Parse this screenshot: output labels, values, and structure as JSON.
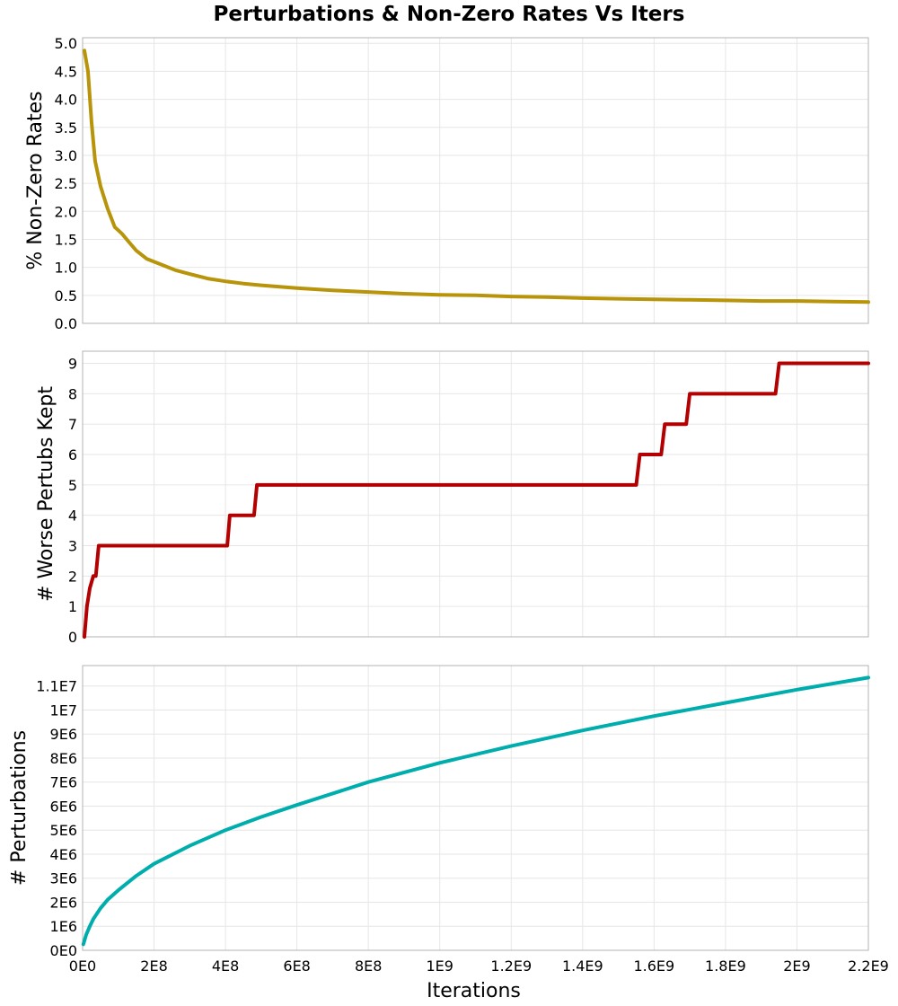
{
  "chart_data": [
    {
      "type": "line",
      "title": "Perturbations & Non-Zero Rates Vs Iters",
      "ylabel": "% Non-Zero Rates",
      "xlim": [
        0,
        2200000000.0
      ],
      "ylim": [
        0,
        5.1
      ],
      "grid": true,
      "yticks": [
        0,
        0.5,
        1.0,
        1.5,
        2.0,
        2.5,
        3.0,
        3.5,
        4.0,
        4.5,
        5.0
      ],
      "ytick_labels": [
        "0.0",
        "0.5",
        "1.0",
        "1.5",
        "2.0",
        "2.5",
        "3.0",
        "3.5",
        "4.0",
        "4.5",
        "5.0"
      ],
      "color": "#b8940a",
      "series": [
        {
          "x": [
            5000000.0,
            15000000.0,
            25000000.0,
            35000000.0,
            50000000.0,
            70000000.0,
            90000000.0,
            110000000.0,
            130000000.0,
            150000000.0,
            180000000.0,
            220000000.0,
            260000000.0,
            300000000.0,
            350000000.0,
            400000000.0,
            450000000.0,
            500000000.0,
            600000000.0,
            700000000.0,
            800000000.0,
            900000000.0,
            1000000000.0,
            1100000000.0,
            1200000000.0,
            1300000000.0,
            1400000000.0,
            1500000000.0,
            1600000000.0,
            1700000000.0,
            1800000000.0,
            1900000000.0,
            2000000000.0,
            2100000000.0,
            2200000000.0
          ],
          "y": [
            4.87,
            4.5,
            3.6,
            2.9,
            2.45,
            2.05,
            1.72,
            1.6,
            1.45,
            1.3,
            1.15,
            1.05,
            0.95,
            0.88,
            0.8,
            0.75,
            0.71,
            0.68,
            0.63,
            0.59,
            0.56,
            0.53,
            0.51,
            0.5,
            0.48,
            0.47,
            0.45,
            0.44,
            0.43,
            0.42,
            0.41,
            0.4,
            0.4,
            0.39,
            0.38
          ]
        }
      ]
    },
    {
      "type": "line",
      "ylabel": "# Worse Pertubs Kept",
      "xlim": [
        0,
        2200000000.0
      ],
      "ylim": [
        0,
        9.4
      ],
      "grid": true,
      "yticks": [
        0,
        1,
        2,
        3,
        4,
        5,
        6,
        7,
        8,
        9
      ],
      "ytick_labels": [
        "0",
        "1",
        "2",
        "3",
        "4",
        "5",
        "6",
        "7",
        "8",
        "9"
      ],
      "color": "#b30000",
      "series": [
        {
          "x": [
            5000000.0,
            12000000.0,
            20000000.0,
            30000000.0,
            37000000.0,
            45000000.0,
            50000000.0,
            405000000.0,
            412000000.0,
            480000000.0,
            488000000.0,
            1550000000.0,
            1560000000.0,
            1620000000.0,
            1630000000.0,
            1690000000.0,
            1700000000.0,
            1940000000.0,
            1950000000.0,
            2200000000.0
          ],
          "y": [
            0,
            1,
            1.6,
            2,
            2,
            3,
            3,
            3,
            4,
            4,
            5,
            5,
            6,
            6,
            7,
            7,
            8,
            8,
            9,
            9
          ]
        }
      ]
    },
    {
      "type": "line",
      "ylabel": "# Perturbations",
      "xlabel": "Iterations",
      "xlim": [
        0,
        2200000000.0
      ],
      "ylim": [
        0,
        11850000.0
      ],
      "grid": true,
      "yticks": [
        0,
        1000000.0,
        2000000.0,
        3000000.0,
        4000000.0,
        5000000.0,
        6000000.0,
        7000000.0,
        8000000.0,
        9000000.0,
        10000000.0,
        11000000.0
      ],
      "ytick_labels": [
        "0E0",
        "1E6",
        "2E6",
        "3E6",
        "4E6",
        "5E6",
        "6E6",
        "7E6",
        "8E6",
        "9E6",
        "1E7",
        "1.1E7"
      ],
      "xticks": [
        0,
        200000000.0,
        400000000.0,
        600000000.0,
        800000000.0,
        1000000000.0,
        1200000000.0,
        1400000000.0,
        1600000000.0,
        1800000000.0,
        2000000000.0,
        2200000000.0
      ],
      "xtick_labels": [
        "0E0",
        "2E8",
        "4E8",
        "6E8",
        "8E8",
        "1E9",
        "1.2E9",
        "1.4E9",
        "1.6E9",
        "1.8E9",
        "2E9",
        "2.2E9"
      ],
      "color": "#00adad",
      "series": [
        {
          "x": [
            2000000.0,
            5000000.0,
            10000000.0,
            20000000.0,
            30000000.0,
            50000000.0,
            70000000.0,
            100000000.0,
            150000000.0,
            200000000.0,
            300000000.0,
            400000000.0,
            500000000.0,
            600000000.0,
            800000000.0,
            1000000000.0,
            1200000000.0,
            1400000000.0,
            1600000000.0,
            1800000000.0,
            2000000000.0,
            2200000000.0
          ],
          "y": [
            250000.0,
            400000.0,
            650000.0,
            1000000.0,
            1300000.0,
            1750000.0,
            2100000.0,
            2500000.0,
            3100000.0,
            3600000.0,
            4350000.0,
            5000000.0,
            5550000.0,
            6050000.0,
            7000000.0,
            7800000.0,
            8500000.0,
            9150000.0,
            9750000.0,
            10300000.0,
            10850000.0,
            11350000.0
          ]
        }
      ]
    }
  ]
}
